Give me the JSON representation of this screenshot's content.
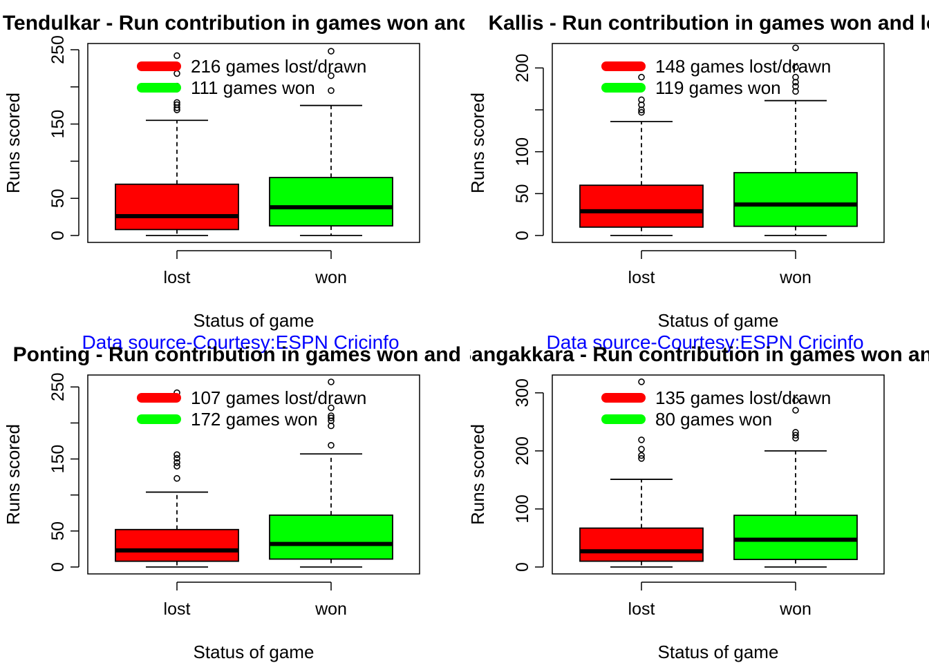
{
  "colors": {
    "lost": "#ff0000",
    "won": "#00ff00",
    "source": "#0000ff"
  },
  "chart_data": [
    {
      "type": "boxplot",
      "title": "Tendulkar - Run contribution in games won and lost/drawn",
      "xlabel": "Status of game",
      "ylabel": "Runs scored",
      "ylim": [
        0,
        250
      ],
      "yticks": [
        0,
        50,
        100,
        150,
        200,
        250
      ],
      "ytick_labels": [
        "0",
        "50",
        "",
        "150",
        "",
        "250"
      ],
      "categories": [
        "lost",
        "won"
      ],
      "legend": [
        {
          "label": "216 games lost/drawn",
          "color": "#ff0000"
        },
        {
          "label": "111 games won",
          "color": "#00ff00"
        }
      ],
      "boxes": [
        {
          "category": "lost",
          "min": 0,
          "q1": 8,
          "median": 26,
          "q3": 69,
          "whisker_high": 155,
          "outliers": [
            169,
            172,
            176,
            179,
            197,
            201,
            218,
            242
          ]
        },
        {
          "category": "won",
          "min": 0,
          "q1": 13,
          "median": 38,
          "q3": 78,
          "whisker_high": 175,
          "outliers": [
            195,
            215,
            248
          ]
        }
      ],
      "source": ""
    },
    {
      "type": "boxplot",
      "title": "Kallis - Run contribution in games won and lost/drawn",
      "xlabel": "Status of game",
      "ylabel": "Runs scored",
      "ylim": [
        0,
        230
      ],
      "yticks": [
        0,
        50,
        100,
        150,
        200
      ],
      "ytick_labels": [
        "0",
        "50",
        "100",
        "",
        "200"
      ],
      "categories": [
        "lost",
        "won"
      ],
      "legend": [
        {
          "label": "148 games lost/drawn",
          "color": "#ff0000"
        },
        {
          "label": "119 games won",
          "color": "#00ff00"
        }
      ],
      "boxes": [
        {
          "category": "lost",
          "min": 0,
          "q1": 10,
          "median": 29,
          "q3": 60,
          "whisker_high": 136,
          "outliers": [
            147,
            150,
            156,
            162,
            189
          ]
        },
        {
          "category": "won",
          "min": 0,
          "q1": 11,
          "median": 37,
          "q3": 75,
          "whisker_high": 161,
          "outliers": [
            172,
            178,
            183,
            189,
            201,
            224
          ]
        }
      ],
      "source": "Data source-Courtesy:ESPN Cricinfo"
    },
    {
      "type": "boxplot",
      "title": "Ponting - Run contribution in games won and lost/drawn",
      "xlabel": "Status of game",
      "ylabel": "Runs scored",
      "ylim": [
        0,
        257
      ],
      "yticks": [
        0,
        50,
        100,
        150,
        200,
        250
      ],
      "ytick_labels": [
        "0",
        "50",
        "",
        "150",
        "",
        "250"
      ],
      "categories": [
        "lost",
        "won"
      ],
      "legend": [
        {
          "label": "107 games lost/drawn",
          "color": "#ff0000"
        },
        {
          "label": "172 games won",
          "color": "#00ff00"
        }
      ],
      "boxes": [
        {
          "category": "lost",
          "min": 0,
          "q1": 8,
          "median": 23,
          "q3": 52,
          "whisker_high": 104,
          "outliers": [
            123,
            140,
            145,
            151,
            156,
            242
          ]
        },
        {
          "category": "won",
          "min": 0,
          "q1": 11,
          "median": 32,
          "q3": 72,
          "whisker_high": 157,
          "outliers": [
            169,
            196,
            203,
            207,
            210,
            221,
            257
          ]
        }
      ],
      "source": "Data source-Courtesy:ESPN Cricinfo"
    },
    {
      "type": "boxplot",
      "title": "Sangakkara - Run contribution in games won and lost/drawn",
      "xlabel": "Status of game",
      "ylabel": "Runs scored",
      "ylim": [
        0,
        320
      ],
      "yticks": [
        0,
        100,
        200,
        300
      ],
      "ytick_labels": [
        "0",
        "100",
        "200",
        "300"
      ],
      "categories": [
        "lost",
        "won"
      ],
      "legend": [
        {
          "label": "135 games lost/drawn",
          "color": "#ff0000"
        },
        {
          "label": "80 games won",
          "color": "#00ff00"
        }
      ],
      "boxes": [
        {
          "category": "lost",
          "min": 0,
          "q1": 10,
          "median": 27,
          "q3": 67,
          "whisker_high": 151,
          "outliers": [
            187,
            192,
            203,
            219,
            319
          ]
        },
        {
          "category": "won",
          "min": 0,
          "q1": 13,
          "median": 47,
          "q3": 89,
          "whisker_high": 200,
          "outliers": [
            222,
            227,
            232,
            270,
            287
          ]
        }
      ],
      "source": ""
    }
  ]
}
